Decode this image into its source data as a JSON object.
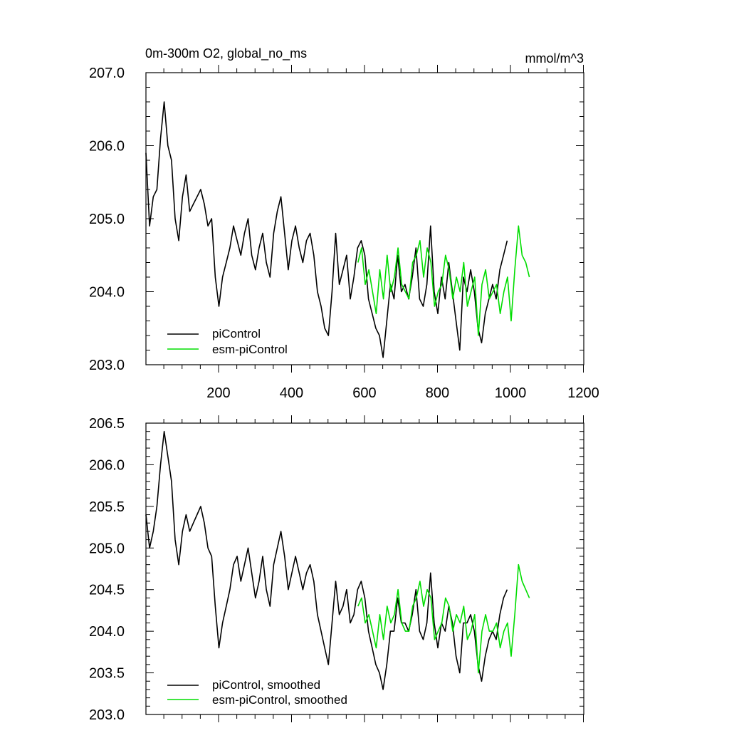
{
  "colors": {
    "picontrol": "#000000",
    "esm_picontrol": "#00dd00",
    "axis": "#000000",
    "background": "#ffffff"
  },
  "chart_data": [
    {
      "type": "line",
      "title": "0m-300m O2, global_no_ms",
      "units": "mmol/m^3",
      "xlabel": "",
      "ylabel": "",
      "xlim": [
        1,
        1201
      ],
      "ylim": [
        203.0,
        207.0
      ],
      "grid": false,
      "legend": "bottom-left",
      "x_ticks": [
        200,
        400,
        600,
        800,
        1000,
        1200
      ],
      "x_tick_labels": [
        "200",
        "400",
        "600",
        "800",
        "1000",
        "1200"
      ],
      "y_ticks": [
        203.0,
        204.0,
        205.0,
        206.0,
        207.0
      ],
      "y_tick_labels": [
        "203.0",
        "204.0",
        "205.0",
        "206.0",
        "207.0"
      ],
      "series": [
        {
          "name": "piControl",
          "color": "#000000",
          "x_start": 1,
          "x_step": 10,
          "values": [
            205.9,
            204.9,
            205.3,
            205.4,
            206.1,
            206.6,
            206.0,
            205.8,
            205.0,
            204.7,
            205.3,
            205.6,
            205.1,
            205.2,
            205.3,
            205.4,
            205.2,
            204.9,
            205.0,
            204.2,
            203.8,
            204.2,
            204.4,
            204.6,
            204.9,
            204.7,
            204.5,
            204.8,
            205.0,
            204.5,
            204.3,
            204.6,
            204.8,
            204.4,
            204.2,
            204.8,
            205.1,
            205.3,
            204.8,
            204.3,
            204.7,
            204.9,
            204.6,
            204.4,
            204.7,
            204.8,
            204.5,
            204.0,
            203.8,
            203.5,
            203.4,
            204.0,
            204.8,
            204.1,
            204.3,
            204.5,
            203.9,
            204.2,
            204.6,
            204.7,
            204.5,
            203.9,
            203.7,
            203.5,
            203.4,
            203.1,
            203.6,
            204.1,
            203.9,
            204.5,
            204.0,
            204.1,
            203.9,
            204.2,
            204.6,
            203.9,
            203.8,
            204.1,
            204.9,
            204.0,
            203.7,
            204.2,
            203.9,
            204.4,
            204.0,
            203.6,
            203.2,
            204.2,
            204.0,
            204.3,
            204.0,
            203.5,
            203.3,
            203.7,
            203.9,
            204.1,
            203.9,
            204.3,
            204.5,
            204.7
          ]
        },
        {
          "name": "esm-piControl",
          "color": "#00dd00",
          "x_start": 582,
          "x_step": 10,
          "values": [
            204.4,
            204.6,
            204.1,
            204.3,
            204.0,
            203.7,
            204.3,
            203.9,
            204.5,
            204.0,
            204.2,
            204.6,
            204.1,
            204.0,
            203.9,
            204.4,
            204.5,
            204.7,
            204.2,
            204.6,
            204.4,
            203.8,
            204.0,
            204.1,
            204.5,
            204.3,
            203.9,
            204.2,
            204.0,
            204.4,
            203.8,
            204.0,
            204.2,
            203.4,
            204.1,
            204.3,
            203.9,
            204.0,
            204.1,
            203.7,
            204.0,
            204.2,
            203.6,
            204.3,
            204.9,
            204.5,
            204.4,
            204.2
          ]
        }
      ]
    },
    {
      "type": "line",
      "title": "",
      "xlabel": "",
      "ylabel": "",
      "xlim": [
        1,
        1201
      ],
      "ylim": [
        203.0,
        206.5
      ],
      "grid": false,
      "legend": "bottom-left",
      "y_ticks": [
        203.0,
        203.5,
        204.0,
        204.5,
        205.0,
        205.5,
        206.0,
        206.5
      ],
      "y_tick_labels": [
        "203.0",
        "203.5",
        "204.0",
        "204.5",
        "205.0",
        "205.5",
        "206.0",
        "206.5"
      ],
      "series": [
        {
          "name": "piControl, smoothed",
          "color": "#000000",
          "x_start": 1,
          "x_step": 10,
          "values": [
            205.4,
            205.0,
            205.2,
            205.5,
            206.0,
            206.4,
            206.1,
            205.8,
            205.1,
            204.8,
            205.2,
            205.4,
            205.2,
            205.3,
            205.4,
            205.5,
            205.3,
            205.0,
            204.9,
            204.3,
            203.8,
            204.1,
            204.3,
            204.5,
            204.8,
            204.9,
            204.6,
            204.8,
            205.0,
            204.7,
            204.4,
            204.6,
            204.9,
            204.5,
            204.3,
            204.8,
            205.0,
            205.2,
            204.9,
            204.5,
            204.7,
            204.9,
            204.7,
            204.5,
            204.7,
            204.8,
            204.6,
            204.2,
            204.0,
            203.8,
            203.6,
            204.1,
            204.6,
            204.2,
            204.3,
            204.5,
            204.1,
            204.2,
            204.5,
            204.6,
            204.4,
            204.0,
            203.8,
            203.6,
            203.5,
            203.3,
            203.6,
            204.0,
            204.0,
            204.4,
            204.1,
            204.1,
            204.0,
            204.2,
            204.5,
            204.0,
            203.9,
            204.1,
            204.7,
            204.1,
            203.8,
            204.1,
            204.0,
            204.3,
            204.1,
            203.7,
            203.5,
            204.1,
            204.1,
            204.2,
            204.0,
            203.6,
            203.4,
            203.7,
            203.9,
            204.0,
            203.9,
            204.2,
            204.4,
            204.5
          ]
        },
        {
          "name": "esm-piControl, smoothed",
          "color": "#00dd00",
          "x_start": 582,
          "x_step": 10,
          "values": [
            204.3,
            204.4,
            204.1,
            204.2,
            204.0,
            203.8,
            204.2,
            203.9,
            204.3,
            204.1,
            204.2,
            204.5,
            204.1,
            204.0,
            204.0,
            204.3,
            204.4,
            204.6,
            204.3,
            204.5,
            204.4,
            203.9,
            204.0,
            204.1,
            204.4,
            204.3,
            204.0,
            204.2,
            204.1,
            204.3,
            203.9,
            204.0,
            204.2,
            203.5,
            204.0,
            204.2,
            204.0,
            204.0,
            204.1,
            203.8,
            204.0,
            204.1,
            203.7,
            204.2,
            204.8,
            204.6,
            204.5,
            204.4
          ]
        }
      ]
    }
  ]
}
